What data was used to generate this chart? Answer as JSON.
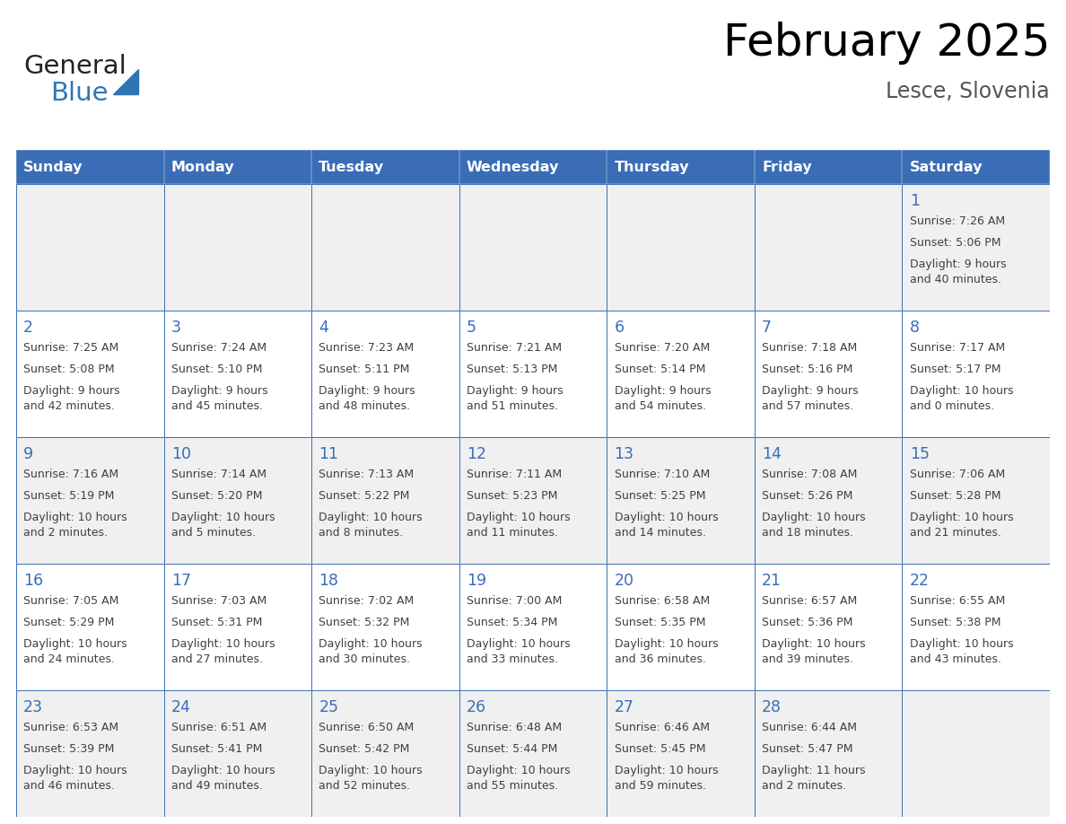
{
  "title": "February 2025",
  "subtitle": "Lesce, Slovenia",
  "days_of_week": [
    "Sunday",
    "Monday",
    "Tuesday",
    "Wednesday",
    "Thursday",
    "Friday",
    "Saturday"
  ],
  "header_bg": "#3A6DB5",
  "header_text": "#FFFFFF",
  "cell_bg_odd": "#F0F0F0",
  "cell_bg_even": "#FFFFFF",
  "cell_border": "#3A6DB5",
  "day_number_color": "#3A6DB5",
  "info_text_color": "#404040",
  "logo_general_color": "#222222",
  "logo_blue_color": "#2E75B6",
  "calendar": [
    [
      null,
      null,
      null,
      null,
      null,
      null,
      {
        "day": 1,
        "sunrise": "7:26 AM",
        "sunset": "5:06 PM",
        "daylight": "9 hours\nand 40 minutes."
      }
    ],
    [
      {
        "day": 2,
        "sunrise": "7:25 AM",
        "sunset": "5:08 PM",
        "daylight": "9 hours\nand 42 minutes."
      },
      {
        "day": 3,
        "sunrise": "7:24 AM",
        "sunset": "5:10 PM",
        "daylight": "9 hours\nand 45 minutes."
      },
      {
        "day": 4,
        "sunrise": "7:23 AM",
        "sunset": "5:11 PM",
        "daylight": "9 hours\nand 48 minutes."
      },
      {
        "day": 5,
        "sunrise": "7:21 AM",
        "sunset": "5:13 PM",
        "daylight": "9 hours\nand 51 minutes."
      },
      {
        "day": 6,
        "sunrise": "7:20 AM",
        "sunset": "5:14 PM",
        "daylight": "9 hours\nand 54 minutes."
      },
      {
        "day": 7,
        "sunrise": "7:18 AM",
        "sunset": "5:16 PM",
        "daylight": "9 hours\nand 57 minutes."
      },
      {
        "day": 8,
        "sunrise": "7:17 AM",
        "sunset": "5:17 PM",
        "daylight": "10 hours\nand 0 minutes."
      }
    ],
    [
      {
        "day": 9,
        "sunrise": "7:16 AM",
        "sunset": "5:19 PM",
        "daylight": "10 hours\nand 2 minutes."
      },
      {
        "day": 10,
        "sunrise": "7:14 AM",
        "sunset": "5:20 PM",
        "daylight": "10 hours\nand 5 minutes."
      },
      {
        "day": 11,
        "sunrise": "7:13 AM",
        "sunset": "5:22 PM",
        "daylight": "10 hours\nand 8 minutes."
      },
      {
        "day": 12,
        "sunrise": "7:11 AM",
        "sunset": "5:23 PM",
        "daylight": "10 hours\nand 11 minutes."
      },
      {
        "day": 13,
        "sunrise": "7:10 AM",
        "sunset": "5:25 PM",
        "daylight": "10 hours\nand 14 minutes."
      },
      {
        "day": 14,
        "sunrise": "7:08 AM",
        "sunset": "5:26 PM",
        "daylight": "10 hours\nand 18 minutes."
      },
      {
        "day": 15,
        "sunrise": "7:06 AM",
        "sunset": "5:28 PM",
        "daylight": "10 hours\nand 21 minutes."
      }
    ],
    [
      {
        "day": 16,
        "sunrise": "7:05 AM",
        "sunset": "5:29 PM",
        "daylight": "10 hours\nand 24 minutes."
      },
      {
        "day": 17,
        "sunrise": "7:03 AM",
        "sunset": "5:31 PM",
        "daylight": "10 hours\nand 27 minutes."
      },
      {
        "day": 18,
        "sunrise": "7:02 AM",
        "sunset": "5:32 PM",
        "daylight": "10 hours\nand 30 minutes."
      },
      {
        "day": 19,
        "sunrise": "7:00 AM",
        "sunset": "5:34 PM",
        "daylight": "10 hours\nand 33 minutes."
      },
      {
        "day": 20,
        "sunrise": "6:58 AM",
        "sunset": "5:35 PM",
        "daylight": "10 hours\nand 36 minutes."
      },
      {
        "day": 21,
        "sunrise": "6:57 AM",
        "sunset": "5:36 PM",
        "daylight": "10 hours\nand 39 minutes."
      },
      {
        "day": 22,
        "sunrise": "6:55 AM",
        "sunset": "5:38 PM",
        "daylight": "10 hours\nand 43 minutes."
      }
    ],
    [
      {
        "day": 23,
        "sunrise": "6:53 AM",
        "sunset": "5:39 PM",
        "daylight": "10 hours\nand 46 minutes."
      },
      {
        "day": 24,
        "sunrise": "6:51 AM",
        "sunset": "5:41 PM",
        "daylight": "10 hours\nand 49 minutes."
      },
      {
        "day": 25,
        "sunrise": "6:50 AM",
        "sunset": "5:42 PM",
        "daylight": "10 hours\nand 52 minutes."
      },
      {
        "day": 26,
        "sunrise": "6:48 AM",
        "sunset": "5:44 PM",
        "daylight": "10 hours\nand 55 minutes."
      },
      {
        "day": 27,
        "sunrise": "6:46 AM",
        "sunset": "5:45 PM",
        "daylight": "10 hours\nand 59 minutes."
      },
      {
        "day": 28,
        "sunrise": "6:44 AM",
        "sunset": "5:47 PM",
        "daylight": "11 hours\nand 2 minutes."
      },
      null
    ]
  ],
  "figsize": [
    11.88,
    9.18
  ],
  "dpi": 100
}
